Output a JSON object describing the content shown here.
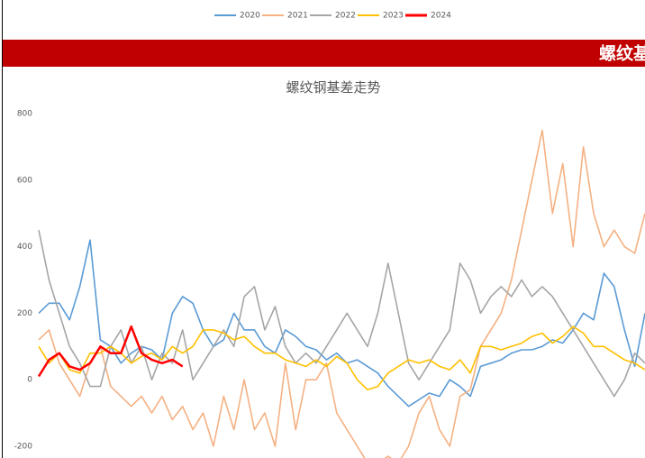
{
  "banner": {
    "text": "螺纹基"
  },
  "chart_data": {
    "type": "line",
    "title": "螺纹钢基差走势",
    "categories": [
      null,
      null,
      null,
      null,
      null,
      null,
      null,
      null,
      null,
      null,
      null,
      null,
      null,
      null,
      null,
      null,
      null,
      null,
      null,
      null,
      null,
      null,
      null,
      null,
      null,
      null,
      null,
      null,
      null,
      null,
      null,
      null,
      null,
      null,
      null,
      null,
      null,
      null,
      null,
      null,
      null,
      null,
      null,
      null,
      null,
      null,
      null,
      null,
      null,
      null,
      null,
      null,
      null,
      null,
      null,
      null,
      null,
      null,
      null,
      null
    ],
    "ylim": [
      -200,
      800
    ],
    "yticks": [
      -200,
      0,
      200,
      400,
      600,
      800
    ],
    "grid": false,
    "legend": "top",
    "series": [
      {
        "name": "2020",
        "color": "#5b9bd5",
        "values": [
          200,
          230,
          230,
          180,
          280,
          420,
          120,
          100,
          50,
          80,
          100,
          90,
          60,
          200,
          250,
          230,
          150,
          100,
          120,
          200,
          150,
          150,
          100,
          80,
          150,
          130,
          100,
          90,
          60,
          80,
          50,
          60,
          40,
          20,
          -20,
          -50,
          -80,
          -60,
          -40,
          -50,
          0,
          -20,
          -50,
          40,
          50,
          60,
          80,
          90,
          90,
          100,
          120,
          110,
          150,
          200,
          180,
          320,
          280,
          150,
          40,
          200
        ]
      },
      {
        "name": "2021",
        "color": "#f4b183",
        "values": [
          120,
          150,
          50,
          0,
          -50,
          50,
          100,
          -20,
          -50,
          -80,
          -50,
          -100,
          -50,
          -120,
          -80,
          -150,
          -100,
          -200,
          -50,
          -150,
          0,
          -150,
          -100,
          -200,
          50,
          -150,
          0,
          0,
          50,
          -100,
          -150,
          -200,
          -250,
          -250,
          -230,
          -250,
          -200,
          -100,
          -50,
          -150,
          -200,
          -50,
          -30,
          100,
          150,
          200,
          300,
          450,
          600,
          750,
          500,
          650,
          400,
          700,
          500,
          400,
          450,
          400,
          380,
          500
        ]
      },
      {
        "name": "2022",
        "color": "#a5a5a5",
        "values": [
          450,
          300,
          200,
          100,
          50,
          -20,
          -20,
          100,
          150,
          50,
          100,
          0,
          80,
          50,
          150,
          0,
          50,
          100,
          150,
          100,
          250,
          280,
          150,
          220,
          100,
          50,
          80,
          50,
          100,
          150,
          200,
          150,
          100,
          200,
          350,
          200,
          50,
          0,
          50,
          100,
          150,
          350,
          300,
          200,
          250,
          280,
          250,
          300,
          250,
          280,
          250,
          200,
          150,
          100,
          50,
          0,
          -50,
          0,
          80,
          50
        ]
      },
      {
        "name": "2023",
        "color": "#ffc000",
        "values": [
          100,
          50,
          80,
          30,
          20,
          80,
          80,
          100,
          80,
          50,
          70,
          80,
          60,
          100,
          80,
          100,
          150,
          150,
          140,
          120,
          130,
          100,
          80,
          80,
          60,
          50,
          40,
          60,
          40,
          70,
          50,
          0,
          -30,
          -20,
          20,
          40,
          60,
          50,
          60,
          40,
          30,
          60,
          20,
          100,
          100,
          90,
          100,
          110,
          130,
          140,
          110,
          130,
          160,
          140,
          100,
          100,
          80,
          60,
          50,
          30
        ]
      },
      {
        "name": "2024",
        "color": "#ff0000",
        "values": [
          10,
          60,
          80,
          40,
          30,
          50,
          100,
          80,
          80,
          160,
          80,
          60,
          50,
          60,
          40,
          null,
          null,
          null,
          null,
          null,
          null,
          null,
          null,
          null,
          null,
          null,
          null,
          null,
          null,
          null,
          null,
          null,
          null,
          null,
          null,
          null,
          null,
          null,
          null,
          null,
          null,
          null,
          null,
          null,
          null,
          null,
          null,
          null,
          null,
          null,
          null,
          null,
          null,
          null,
          null,
          null,
          null,
          null,
          null,
          null
        ]
      }
    ]
  }
}
